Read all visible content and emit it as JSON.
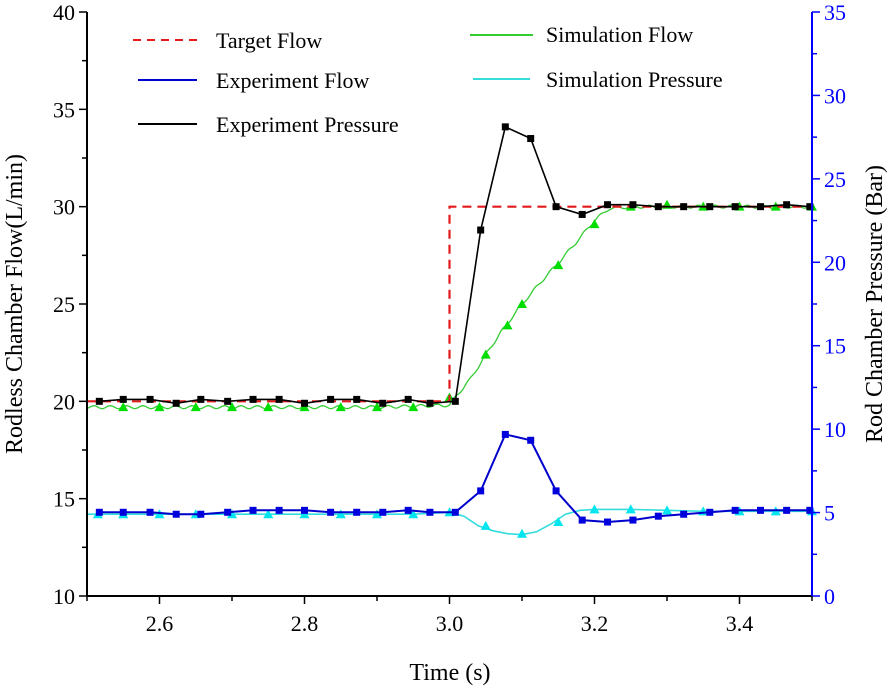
{
  "chart_data": {
    "type": "line",
    "title": "",
    "xlabel": "Time (s)",
    "ylabel": "Rodless Chamber Flow(L/min)",
    "y2label": "Rod Chamber Pressure (Bar)",
    "xlim": [
      2.5,
      3.5
    ],
    "ylim": [
      10,
      40
    ],
    "y2lim": [
      0,
      35
    ],
    "xticks": [
      "2.6",
      "2.8",
      "3.0",
      "3.2",
      "3.4"
    ],
    "xtick_values": [
      2.6,
      2.8,
      3.0,
      3.2,
      3.4
    ],
    "yticks": [
      "10",
      "15",
      "20",
      "25",
      "30",
      "35",
      "40"
    ],
    "ytick_values": [
      10,
      15,
      20,
      25,
      30,
      35,
      40
    ],
    "y2ticks": [
      "0",
      "5",
      "10",
      "15",
      "20",
      "25",
      "30",
      "35"
    ],
    "y2tick_values": [
      0,
      5,
      10,
      15,
      20,
      25,
      30,
      35
    ],
    "colors": {
      "axis_left": "#000000",
      "axis_right": "#0000ff",
      "target": "#e31a1c",
      "exp_flow": "#0000cc",
      "exp_pressure": "#000000",
      "sim_flow": "#33cc33",
      "sim_flow_marker": "#00dd00",
      "sim_pressure": "#33dddd",
      "sim_pressure_marker": "#00e5ee"
    },
    "legend_placement": "top",
    "series": [
      {
        "name": "Target Flow",
        "style": "dashed",
        "axis": "left",
        "x": [
          2.5,
          3.0,
          3.0,
          3.5
        ],
        "y": [
          20.0,
          20.0,
          30.0,
          30.0
        ]
      },
      {
        "name": "Experiment Pressure",
        "style": "line-square",
        "axis": "left",
        "x": [
          2.517,
          2.55,
          2.587,
          2.623,
          2.657,
          2.694,
          2.729,
          2.765,
          2.8,
          2.836,
          2.872,
          2.908,
          2.943,
          2.973,
          3.008,
          3.043,
          3.077,
          3.112,
          3.147,
          3.183,
          3.218,
          3.253,
          3.288,
          3.323,
          3.359,
          3.394,
          3.429,
          3.465,
          3.497
        ],
        "y": [
          20.0,
          20.1,
          20.1,
          19.9,
          20.1,
          20.0,
          20.1,
          20.1,
          19.9,
          20.1,
          20.1,
          19.9,
          20.1,
          19.9,
          20.0,
          28.8,
          34.1,
          33.5,
          30.0,
          29.6,
          30.1,
          30.1,
          30.0,
          30.0,
          30.0,
          30.0,
          30.0,
          30.1,
          30.0
        ]
      },
      {
        "name": "Experiment Flow",
        "style": "line-square",
        "axis": "left",
        "x": [
          2.517,
          2.55,
          2.587,
          2.623,
          2.657,
          2.694,
          2.729,
          2.765,
          2.8,
          2.836,
          2.872,
          2.908,
          2.943,
          2.973,
          3.008,
          3.043,
          3.077,
          3.112,
          3.147,
          3.183,
          3.218,
          3.253,
          3.288,
          3.323,
          3.359,
          3.394,
          3.429,
          3.465,
          3.497
        ],
        "y": [
          14.3,
          14.3,
          14.3,
          14.2,
          14.2,
          14.3,
          14.4,
          14.4,
          14.4,
          14.3,
          14.3,
          14.3,
          14.4,
          14.3,
          14.3,
          15.4,
          18.3,
          18.0,
          15.4,
          13.9,
          13.8,
          13.9,
          14.1,
          14.2,
          14.3,
          14.4,
          14.4,
          14.4,
          14.4
        ]
      },
      {
        "name": "Simulation Flow",
        "style": "wavy-line-triangle",
        "axis": "left",
        "x": [
          2.5,
          2.55,
          2.6,
          2.65,
          2.7,
          2.75,
          2.8,
          2.85,
          2.9,
          2.95,
          3.0,
          3.01,
          3.03,
          3.05,
          3.07,
          3.1,
          3.13,
          3.15,
          3.18,
          3.2,
          3.22,
          3.25,
          3.3,
          3.35,
          3.4,
          3.45,
          3.5
        ],
        "y": [
          19.7,
          19.7,
          19.7,
          19.7,
          19.7,
          19.7,
          19.7,
          19.7,
          19.7,
          19.75,
          19.8,
          20.3,
          21.2,
          22.4,
          23.5,
          25.0,
          26.3,
          27.1,
          28.4,
          29.3,
          29.9,
          30.0,
          30.0,
          30.0,
          30.0,
          30.0,
          30.0
        ],
        "markers_x": [
          2.55,
          2.6,
          2.65,
          2.7,
          2.75,
          2.8,
          2.85,
          2.9,
          2.95,
          3.0,
          3.05,
          3.08,
          3.1,
          3.15,
          3.2,
          3.25,
          3.3,
          3.35,
          3.4,
          3.45,
          3.5
        ],
        "markers_y": [
          19.7,
          19.7,
          19.7,
          19.7,
          19.7,
          19.7,
          19.7,
          19.7,
          19.7,
          20.2,
          22.4,
          23.9,
          25.0,
          27.0,
          29.1,
          30.0,
          30.1,
          30.0,
          30.0,
          30.0,
          30.0
        ]
      },
      {
        "name": "Simulation Pressure",
        "style": "line-triangle",
        "axis": "left",
        "x": [
          2.5,
          2.55,
          2.6,
          2.65,
          2.7,
          2.75,
          2.8,
          2.85,
          2.9,
          2.95,
          3.0,
          3.02,
          3.04,
          3.06,
          3.08,
          3.1,
          3.12,
          3.14,
          3.16,
          3.18,
          3.2,
          3.25,
          3.3,
          3.35,
          3.4,
          3.45,
          3.5
        ],
        "y": [
          14.2,
          14.2,
          14.2,
          14.2,
          14.2,
          14.2,
          14.2,
          14.2,
          14.2,
          14.2,
          14.3,
          14.1,
          13.6,
          13.35,
          13.2,
          13.15,
          13.3,
          13.7,
          14.2,
          14.4,
          14.45,
          14.45,
          14.4,
          14.35,
          14.35,
          14.35,
          14.35
        ],
        "markers_x": [
          2.515,
          2.55,
          2.6,
          2.65,
          2.7,
          2.75,
          2.8,
          2.85,
          2.9,
          2.95,
          3.0,
          3.05,
          3.1,
          3.15,
          3.2,
          3.25,
          3.3,
          3.35,
          3.4,
          3.45,
          3.5
        ],
        "markers_y": [
          14.2,
          14.2,
          14.2,
          14.2,
          14.2,
          14.2,
          14.2,
          14.2,
          14.2,
          14.2,
          14.3,
          13.6,
          13.2,
          13.8,
          14.45,
          14.45,
          14.4,
          14.35,
          14.35,
          14.35,
          14.35
        ]
      }
    ]
  },
  "legend": {
    "items": [
      {
        "label": "Target Flow",
        "key": "target"
      },
      {
        "label": "Experiment Flow",
        "key": "exp_flow"
      },
      {
        "label": "Experiment Pressure",
        "key": "exp_pressure"
      },
      {
        "label": "Simulation Flow",
        "key": "sim_flow"
      },
      {
        "label": "Simulation Pressure",
        "key": "sim_pressure"
      }
    ]
  }
}
